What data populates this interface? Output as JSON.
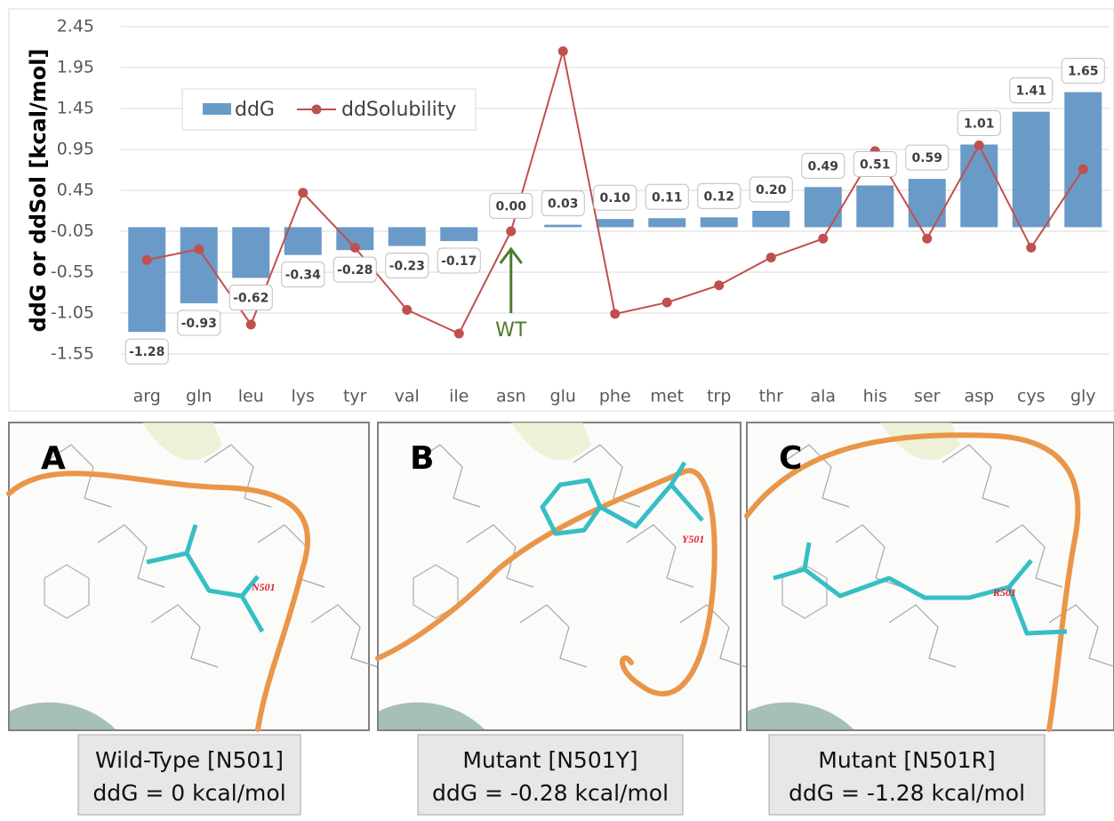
{
  "chart_data": {
    "type": "bar_line",
    "y_label": "ddG or ddSol [kcal/mol]",
    "categories": [
      "arg",
      "gln",
      "leu",
      "lys",
      "tyr",
      "val",
      "ile",
      "asn",
      "glu",
      "phe",
      "met",
      "trp",
      "thr",
      "ala",
      "his",
      "ser",
      "asp",
      "cys",
      "gly"
    ],
    "series": [
      {
        "name": "ddG",
        "type": "bar",
        "color": "#6a9ac8",
        "values": [
          -1.28,
          -0.93,
          -0.62,
          -0.34,
          -0.28,
          -0.23,
          -0.17,
          0,
          0.03,
          0.1,
          0.11,
          0.12,
          0.2,
          0.49,
          0.51,
          0.59,
          1.01,
          1.41,
          1.65
        ],
        "value_labels": [
          "-1.28",
          "-0.93",
          "-0.62",
          "-0.34",
          "-0.28",
          "-0.23",
          "-0.17",
          "0.00",
          "0.03",
          "0.10",
          "0.11",
          "0.12",
          "0.20",
          "0.49",
          "0.51",
          "0.59",
          "1.01",
          "1.41",
          "1.65"
        ]
      },
      {
        "name": "ddSolubility",
        "type": "line",
        "color": "#c0504d",
        "values": [
          -0.4,
          -0.27,
          -1.19,
          0.42,
          -0.25,
          -1.01,
          -1.3,
          -0.05,
          2.15,
          -1.06,
          -0.92,
          -0.71,
          -0.37,
          -0.14,
          0.93,
          -0.14,
          1.0,
          -0.25,
          0.71
        ]
      }
    ],
    "ylim": [
      -1.55,
      2.45
    ],
    "yticks": [
      -1.55,
      -1.05,
      -0.55,
      -0.05,
      0.45,
      0.95,
      1.45,
      1.95,
      2.45
    ],
    "grid": true,
    "legend": "upper-left",
    "annotation": {
      "text": "WT",
      "category_index": 7,
      "color": "#4e7a2e"
    }
  },
  "panels": [
    {
      "letter": "A",
      "residue_label": "N501",
      "caption": [
        "Wild-Type [N501]",
        "ddG = 0 kcal/mol"
      ]
    },
    {
      "letter": "B",
      "residue_label": "Y501",
      "caption": [
        "Mutant [N501Y]",
        "ddG = -0.28 kcal/mol"
      ]
    },
    {
      "letter": "C",
      "residue_label": "R501",
      "caption": [
        "Mutant [N501R]",
        "ddG = -1.28 kcal/mol"
      ]
    }
  ]
}
